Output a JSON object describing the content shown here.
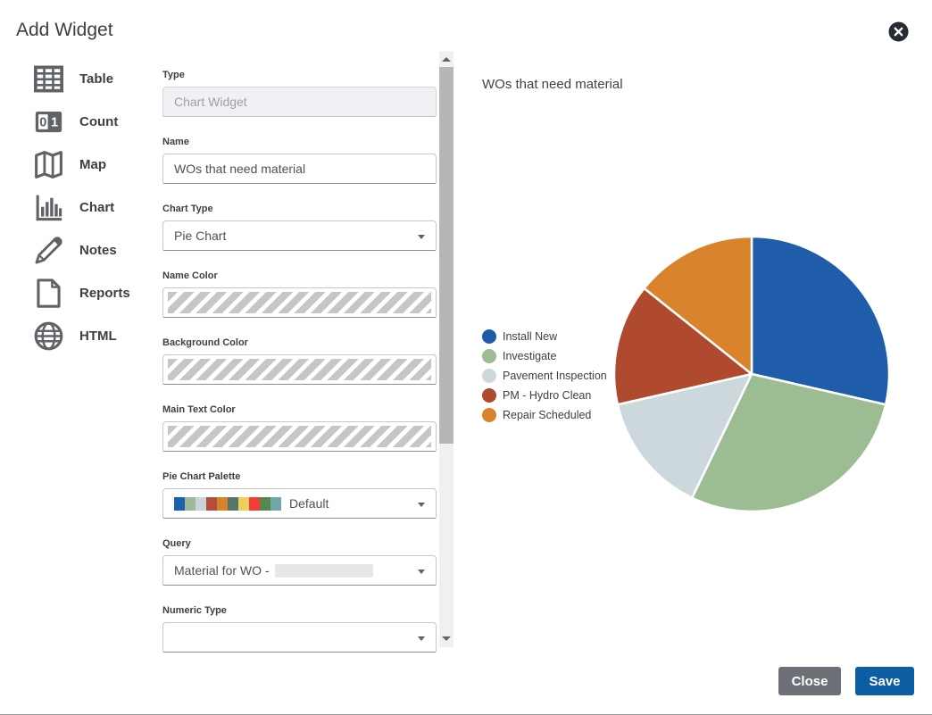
{
  "modal": {
    "title": "Add Widget",
    "close_icon": "circle-x-icon"
  },
  "sidebar": {
    "items": [
      {
        "label": "Table",
        "icon": "table-icon"
      },
      {
        "label": "Count",
        "icon": "counter-icon"
      },
      {
        "label": "Map",
        "icon": "map-icon"
      },
      {
        "label": "Chart",
        "icon": "bar-chart-icon"
      },
      {
        "label": "Notes",
        "icon": "pencil-icon"
      },
      {
        "label": "Reports",
        "icon": "document-icon"
      },
      {
        "label": "HTML",
        "icon": "globe-icon"
      }
    ]
  },
  "form": {
    "type": {
      "label": "Type",
      "value": "Chart Widget",
      "disabled": true
    },
    "name": {
      "label": "Name",
      "value": "WOs that need material"
    },
    "chart_type": {
      "label": "Chart Type",
      "value": "Pie Chart"
    },
    "name_color": {
      "label": "Name Color",
      "value": "",
      "pattern": "transparent-hatch"
    },
    "background_color": {
      "label": "Background Color",
      "value": "",
      "pattern": "transparent-hatch"
    },
    "main_text_color": {
      "label": "Main Text Color",
      "value": "",
      "pattern": "transparent-hatch"
    },
    "palette": {
      "label": "Pie Chart Palette",
      "value": "Default",
      "swatches": [
        "#1a62ad",
        "#9cb998",
        "#c9d4da",
        "#b14f3c",
        "#d8832b",
        "#56756a",
        "#ecd05e",
        "#f63c39",
        "#57864e",
        "#6fa8ab"
      ]
    },
    "query": {
      "label": "Query",
      "value": "Material for WO -",
      "redacted": true
    },
    "numeric_type": {
      "label": "Numeric Type",
      "value": ""
    }
  },
  "preview": {
    "title": "WOs that need material"
  },
  "chart_data": {
    "type": "pie",
    "title": "WOs that need material",
    "labels": [
      "Install New",
      "Investigate",
      "Pavement Inspection",
      "PM - Hydro Clean",
      "Repair Scheduled"
    ],
    "values": [
      2,
      2,
      1,
      1,
      1
    ],
    "percentages": [
      28.6,
      28.6,
      14.3,
      14.3,
      14.3
    ],
    "colors": [
      "#1f5ca9",
      "#9cbc94",
      "#ccd8dc",
      "#b04a2e",
      "#d9832d"
    ],
    "legend_position": "left",
    "start_angle_deg": 0,
    "direction": "clockwise"
  },
  "footer": {
    "close_label": "Close",
    "save_label": "Save"
  },
  "colors": {
    "save_button": "#0d5da4",
    "close_button": "#6d7177",
    "icon_gray": "#5f6368",
    "close_icon_bg": "#262c33"
  }
}
